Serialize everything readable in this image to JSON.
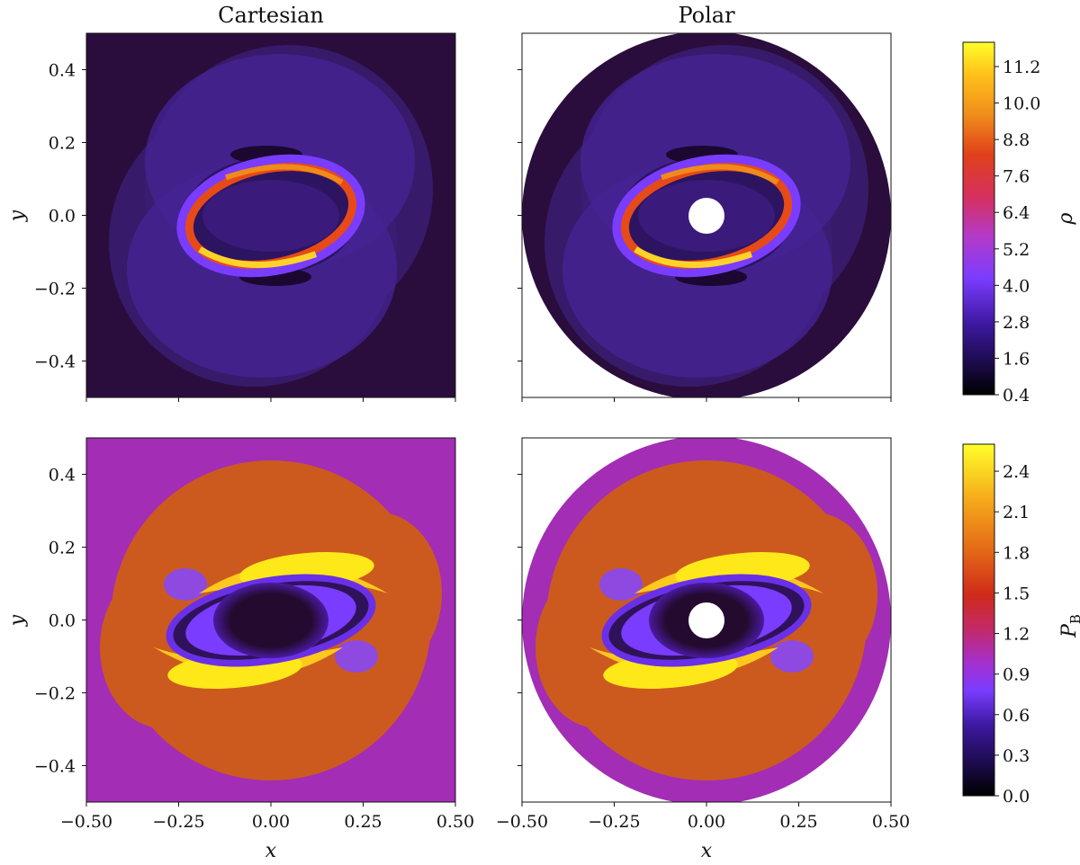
{
  "chart_data": [
    {
      "type": "heatmap",
      "title": "Cartesian",
      "xlabel": "",
      "ylabel": "y",
      "xlim": [
        -0.5,
        0.5
      ],
      "ylim": [
        -0.5,
        0.5
      ],
      "yticks": [
        "0.4",
        "0.2",
        "0.0",
        "−0.2",
        "−0.4"
      ],
      "field": "ρ",
      "colormap": "gnuplot2/plasma-like (black-purple-red-yellow)"
    },
    {
      "type": "heatmap",
      "title": "Polar",
      "xlabel": "",
      "ylabel": "",
      "xlim": [
        -0.5,
        0.5
      ],
      "ylim": [
        -0.5,
        0.5
      ],
      "field": "ρ"
    },
    {
      "type": "heatmap",
      "title": "",
      "xlabel": "x",
      "ylabel": "y",
      "xlim": [
        -0.5,
        0.5
      ],
      "ylim": [
        -0.5,
        0.5
      ],
      "xticks": [
        "−0.50",
        "−0.25",
        "0.00",
        "0.25",
        "0.50"
      ],
      "yticks": [
        "0.4",
        "0.2",
        "0.0",
        "−0.2",
        "−0.4"
      ],
      "field": "P_B"
    },
    {
      "type": "heatmap",
      "title": "",
      "xlabel": "x",
      "ylabel": "",
      "xlim": [
        -0.5,
        0.5
      ],
      "ylim": [
        -0.5,
        0.5
      ],
      "xticks": [
        "−0.50",
        "−0.25",
        "0.00",
        "0.25",
        "0.50"
      ],
      "field": "P_B"
    }
  ],
  "colorbars": {
    "rho": {
      "label": "ρ",
      "range": [
        0.4,
        12.0
      ],
      "ticks": [
        "0.4",
        "1.6",
        "2.8",
        "4.0",
        "5.2",
        "6.4",
        "7.6",
        "8.8",
        "10.0",
        "11.2"
      ]
    },
    "pb": {
      "label_main": "P",
      "label_sub": "B",
      "range": [
        0.0,
        2.6
      ],
      "ticks": [
        "0.0",
        "0.3",
        "0.6",
        "0.9",
        "1.2",
        "1.5",
        "1.8",
        "2.1",
        "2.4"
      ]
    }
  },
  "columns": {
    "left": "Cartesian",
    "right": "Polar"
  },
  "colors": {
    "rho_background": "#2a0d3d",
    "rho_disk": "#3b1d72",
    "rho_shell": "#4a2790",
    "pb_background": "#a32db5",
    "pb_disk": "#cc5a1e",
    "pb_core": "#240a2e",
    "hot_yellow": "#ffe81a",
    "hot_orange": "#f07c18",
    "hot_red": "#c8241a",
    "vivid_purple": "#7a3cff"
  }
}
